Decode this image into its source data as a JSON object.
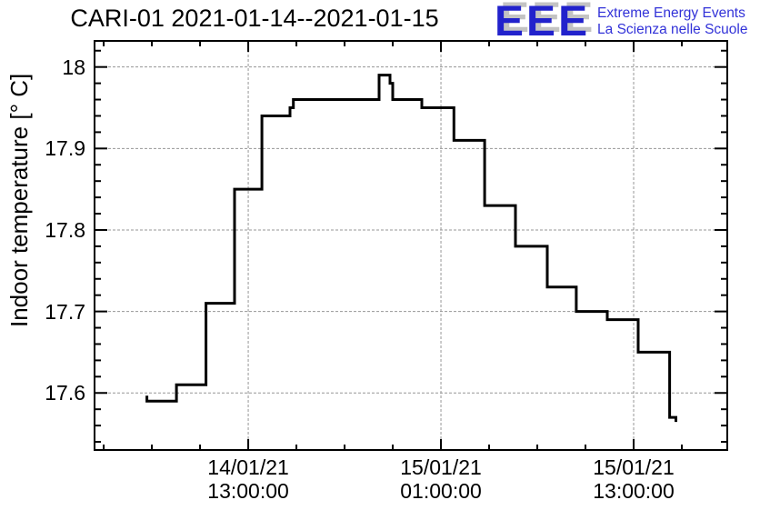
{
  "title": "CARI-01 2021-01-14--2021-01-15",
  "logo": {
    "acronym": "EEE",
    "line1": "Extreme Energy Events",
    "line2": "La Scienza nelle Scuole",
    "acronym_color": "#2222cc",
    "text_color": "#3232d8",
    "shadow_color": "#c3c3c3"
  },
  "chart_data": {
    "type": "line",
    "style": "step",
    "title": "CARI-01 2021-01-14--2021-01-15",
    "xlabel": "",
    "ylabel": "Indoor temperature [° C]",
    "grid": true,
    "legend": "none",
    "line_color": "#000000",
    "grid_color": "#969696",
    "frame_color": "#000000",
    "time_unit": "hours since 2021-01-14 00:00:00",
    "xlim_hours": [
      3.43,
      42.83
    ],
    "ylim": [
      17.53,
      18.032
    ],
    "x_major_ticks_hours": [
      13,
      25,
      37
    ],
    "x_tick_labels": [
      [
        "14/01/21",
        "13:00:00"
      ],
      [
        "15/01/21",
        "01:00:00"
      ],
      [
        "15/01/21",
        "13:00:00"
      ]
    ],
    "x_minor_ticks_hours": [
      4,
      7,
      10,
      16,
      19,
      22,
      28,
      31,
      34,
      40
    ],
    "y_major_ticks": [
      17.6,
      17.7,
      17.8,
      17.9,
      18.0
    ],
    "y_tick_labels": [
      "17.6",
      "17.7",
      "17.8",
      "17.9",
      "18"
    ],
    "y_minor_step": 0.02,
    "steps": [
      {
        "start_h": 6.69,
        "end_h": 8.53,
        "temp": 17.59
      },
      {
        "start_h": 8.53,
        "end_h": 10.37,
        "temp": 17.61
      },
      {
        "start_h": 10.37,
        "end_h": 12.15,
        "temp": 17.71
      },
      {
        "start_h": 12.15,
        "end_h": 13.85,
        "temp": 17.85
      },
      {
        "start_h": 13.85,
        "end_h": 15.6,
        "temp": 17.94
      },
      {
        "start_h": 15.6,
        "end_h": 15.81,
        "temp": 17.95
      },
      {
        "start_h": 15.81,
        "end_h": 21.15,
        "temp": 17.96
      },
      {
        "start_h": 21.15,
        "end_h": 21.83,
        "temp": 17.99
      },
      {
        "start_h": 21.83,
        "end_h": 22.0,
        "temp": 17.98
      },
      {
        "start_h": 22.0,
        "end_h": 23.81,
        "temp": 17.96
      },
      {
        "start_h": 23.81,
        "end_h": 25.81,
        "temp": 17.95
      },
      {
        "start_h": 25.81,
        "end_h": 27.72,
        "temp": 17.91
      },
      {
        "start_h": 27.72,
        "end_h": 29.64,
        "temp": 17.83
      },
      {
        "start_h": 29.64,
        "end_h": 31.62,
        "temp": 17.78
      },
      {
        "start_h": 31.62,
        "end_h": 33.43,
        "temp": 17.73
      },
      {
        "start_h": 33.43,
        "end_h": 35.36,
        "temp": 17.7
      },
      {
        "start_h": 35.36,
        "end_h": 37.28,
        "temp": 17.69
      },
      {
        "start_h": 37.28,
        "end_h": 39.24,
        "temp": 17.65
      },
      {
        "start_h": 39.24,
        "end_h": 39.63,
        "temp": 17.57
      }
    ]
  }
}
